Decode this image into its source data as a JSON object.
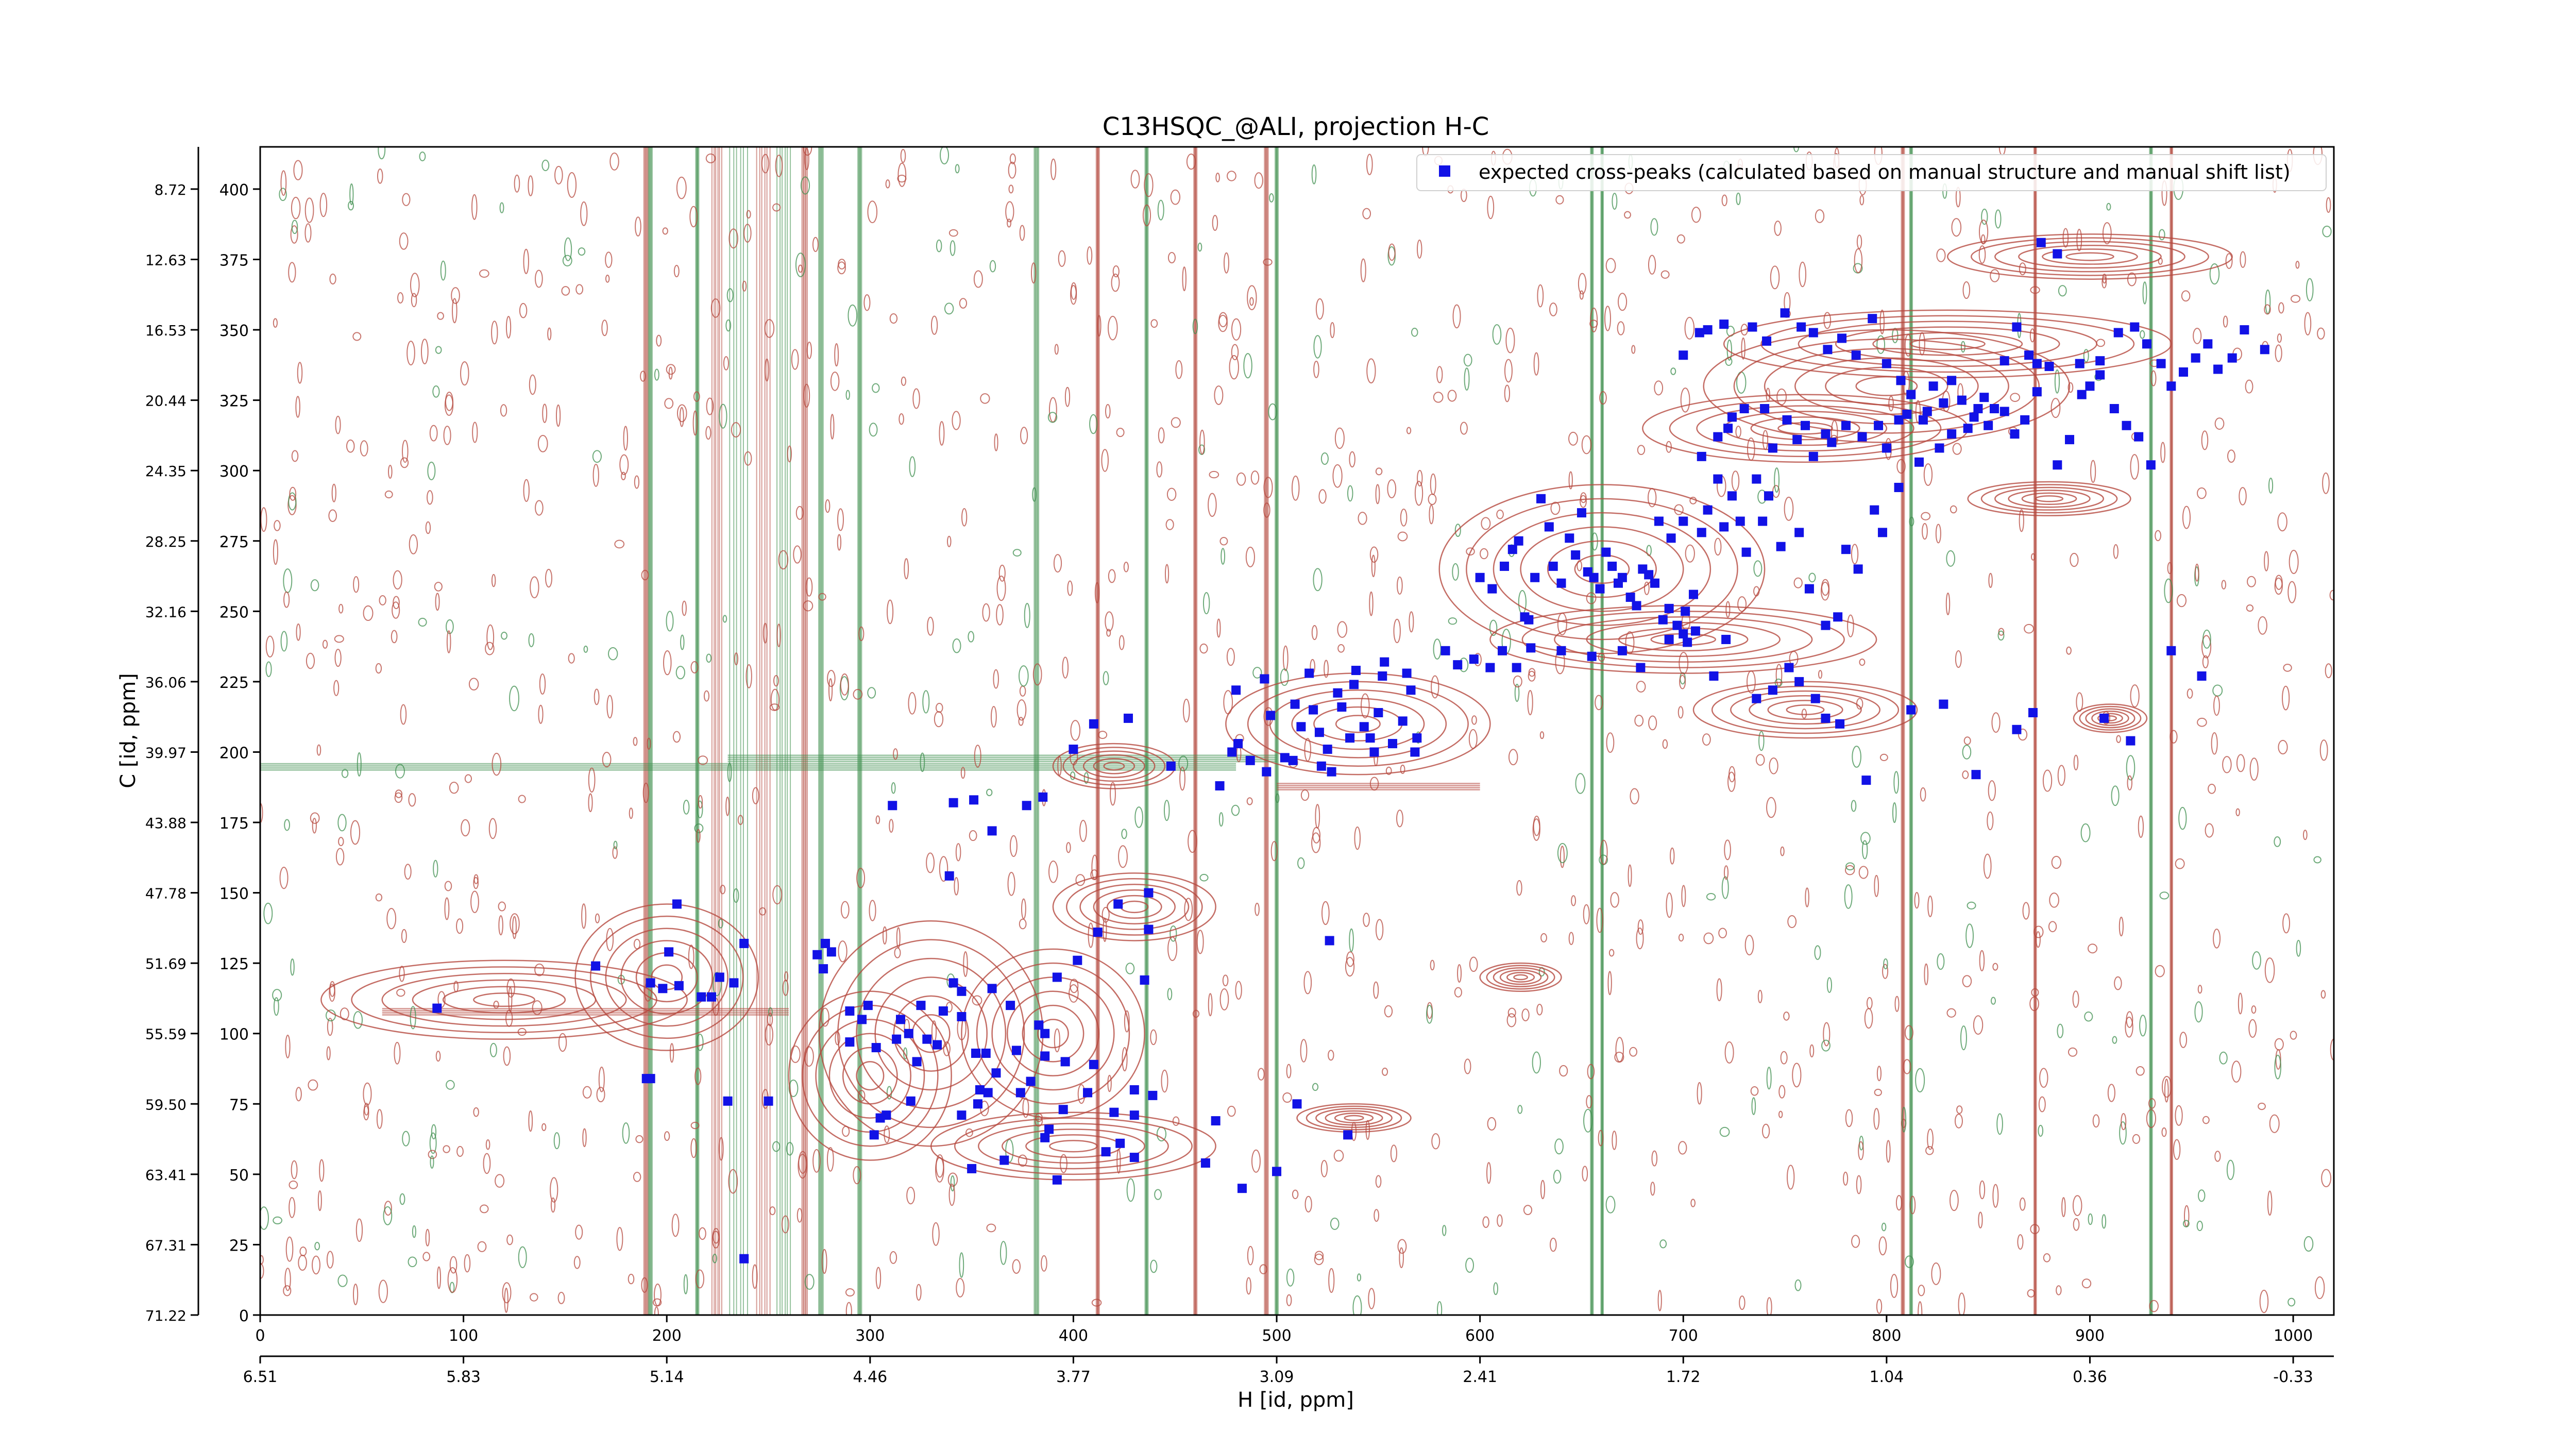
{
  "chart_data": {
    "type": "scatter",
    "title": "C13HSQC_@ALI, projection H-C",
    "xlabel": "H [id, ppm]",
    "ylabel": "C [id, ppm]",
    "x_index_ticks": [
      "0",
      "100",
      "200",
      "300",
      "400",
      "500",
      "600",
      "700",
      "800",
      "900",
      "1000"
    ],
    "x_ppm_ticks": [
      "6.51",
      "5.83",
      "5.14",
      "4.46",
      "3.77",
      "3.09",
      "2.41",
      "1.72",
      "1.04",
      "0.36",
      "-0.33"
    ],
    "y_index_ticks": [
      "0",
      "25",
      "50",
      "75",
      "100",
      "125",
      "150",
      "175",
      "200",
      "225",
      "250",
      "275",
      "300",
      "325",
      "350",
      "375",
      "400"
    ],
    "y_ppm_ticks": [
      "71.22",
      "67.31",
      "63.41",
      "59.50",
      "55.59",
      "51.69",
      "47.78",
      "43.88",
      "39.97",
      "36.06",
      "32.16",
      "28.25",
      "24.35",
      "20.44",
      "16.53",
      "12.63",
      "8.72"
    ],
    "xlim": [
      0,
      1020
    ],
    "ylim": [
      0,
      415
    ],
    "legend": {
      "position": "top-right",
      "label": "expected cross-peaks (calculated based on manual structure and manual shift list)"
    },
    "colors": {
      "positive_contour": "#b5483e",
      "negative_contour": "#3f8f4f",
      "marker": "#1212e6",
      "spine": "#000000"
    },
    "series": [
      {
        "name": "expected cross-peaks (calculated based on manual structure and manual shift list)",
        "points": [
          [
            87,
            109
          ],
          [
            165,
            124
          ],
          [
            192,
            118
          ],
          [
            198,
            116
          ],
          [
            201,
            129
          ],
          [
            205,
            146
          ],
          [
            206,
            117
          ],
          [
            217,
            113
          ],
          [
            222,
            113
          ],
          [
            190,
            84
          ],
          [
            192,
            84
          ],
          [
            230,
            76
          ],
          [
            250,
            76
          ],
          [
            238,
            20
          ],
          [
            238,
            132
          ],
          [
            233,
            118
          ],
          [
            226,
            120
          ],
          [
            274,
            128
          ],
          [
            278,
            132
          ],
          [
            281,
            129
          ],
          [
            277,
            123
          ],
          [
            290,
            108
          ],
          [
            290,
            97
          ],
          [
            296,
            105
          ],
          [
            299,
            110
          ],
          [
            302,
            64
          ],
          [
            305,
            70
          ],
          [
            303,
            95
          ],
          [
            308,
            71
          ],
          [
            313,
            98
          ],
          [
            315,
            105
          ],
          [
            319,
            100
          ],
          [
            320,
            76
          ],
          [
            323,
            90
          ],
          [
            325,
            110
          ],
          [
            328,
            98
          ],
          [
            333,
            96
          ],
          [
            336,
            108
          ],
          [
            341,
            118
          ],
          [
            345,
            115
          ],
          [
            345,
            106
          ],
          [
            352,
            93
          ],
          [
            354,
            80
          ],
          [
            357,
            93
          ],
          [
            360,
            116
          ],
          [
            362,
            86
          ],
          [
            369,
            110
          ],
          [
            372,
            94
          ],
          [
            379,
            83
          ],
          [
            383,
            103
          ],
          [
            386,
            100
          ],
          [
            386,
            63
          ],
          [
            392,
            120
          ],
          [
            395,
            73
          ],
          [
            396,
            90
          ],
          [
            402,
            126
          ],
          [
            407,
            79
          ],
          [
            410,
            89
          ],
          [
            412,
            136
          ],
          [
            416,
            58
          ],
          [
            422,
            146
          ],
          [
            423,
            61
          ],
          [
            430,
            56
          ],
          [
            430,
            80
          ],
          [
            435,
            119
          ],
          [
            437,
            137
          ],
          [
            439,
            78
          ],
          [
            437,
            150
          ],
          [
            345,
            71
          ],
          [
            350,
            52
          ],
          [
            353,
            75
          ],
          [
            358,
            79
          ],
          [
            366,
            55
          ],
          [
            374,
            79
          ],
          [
            386,
            92
          ],
          [
            388,
            66
          ],
          [
            392,
            48
          ],
          [
            420,
            72
          ],
          [
            430,
            71
          ],
          [
            470,
            69
          ],
          [
            483,
            45
          ],
          [
            465,
            54
          ],
          [
            500,
            51
          ],
          [
            510,
            75
          ],
          [
            526,
            133
          ],
          [
            535,
            64
          ],
          [
            311,
            181
          ],
          [
            339,
            156
          ],
          [
            341,
            182
          ],
          [
            351,
            183
          ],
          [
            360,
            172
          ],
          [
            377,
            181
          ],
          [
            385,
            184
          ],
          [
            400,
            201
          ],
          [
            410,
            210
          ],
          [
            427,
            212
          ],
          [
            448,
            195
          ],
          [
            472,
            188
          ],
          [
            497,
            213
          ],
          [
            480,
            222
          ],
          [
            494,
            226
          ],
          [
            478,
            200
          ],
          [
            481,
            203
          ],
          [
            487,
            197
          ],
          [
            495,
            193
          ],
          [
            504,
            198
          ],
          [
            508,
            197
          ],
          [
            509,
            217
          ],
          [
            512,
            209
          ],
          [
            516,
            228
          ],
          [
            518,
            215
          ],
          [
            521,
            207
          ],
          [
            525,
            201
          ],
          [
            530,
            221
          ],
          [
            532,
            216
          ],
          [
            538,
            224
          ],
          [
            539,
            229
          ],
          [
            550,
            214
          ],
          [
            552,
            227
          ],
          [
            562,
            211
          ],
          [
            564,
            228
          ],
          [
            566,
            222
          ],
          [
            568,
            200
          ],
          [
            569,
            205
          ],
          [
            557,
            203
          ],
          [
            543,
            209
          ],
          [
            546,
            205
          ],
          [
            548,
            200
          ],
          [
            522,
            195
          ],
          [
            527,
            193
          ],
          [
            536,
            205
          ],
          [
            553,
            232
          ],
          [
            583,
            236
          ],
          [
            589,
            231
          ],
          [
            597,
            233
          ],
          [
            605,
            230
          ],
          [
            611,
            236
          ],
          [
            618,
            230
          ],
          [
            624,
            247
          ],
          [
            625,
            237
          ],
          [
            640,
            236
          ],
          [
            655,
            234
          ],
          [
            670,
            236
          ],
          [
            679,
            230
          ],
          [
            693,
            240
          ],
          [
            700,
            242
          ],
          [
            702,
            239
          ],
          [
            706,
            243
          ],
          [
            715,
            227
          ],
          [
            721,
            240
          ],
          [
            736,
            219
          ],
          [
            744,
            222
          ],
          [
            752,
            230
          ],
          [
            757,
            225
          ],
          [
            765,
            219
          ],
          [
            770,
            212
          ],
          [
            777,
            210
          ],
          [
            790,
            190
          ],
          [
            812,
            215
          ],
          [
            828,
            217
          ],
          [
            844,
            192
          ],
          [
            864,
            208
          ],
          [
            872,
            214
          ],
          [
            907,
            212
          ],
          [
            920,
            204
          ],
          [
            940,
            236
          ],
          [
            955,
            227
          ],
          [
            600,
            262
          ],
          [
            606,
            258
          ],
          [
            612,
            266
          ],
          [
            616,
            272
          ],
          [
            619,
            275
          ],
          [
            622,
            248
          ],
          [
            627,
            262
          ],
          [
            630,
            290
          ],
          [
            634,
            280
          ],
          [
            636,
            266
          ],
          [
            640,
            260
          ],
          [
            644,
            276
          ],
          [
            647,
            270
          ],
          [
            650,
            285
          ],
          [
            653,
            264
          ],
          [
            656,
            262
          ],
          [
            659,
            258
          ],
          [
            662,
            271
          ],
          [
            665,
            266
          ],
          [
            668,
            260
          ],
          [
            670,
            262
          ],
          [
            674,
            255
          ],
          [
            677,
            252
          ],
          [
            680,
            265
          ],
          [
            683,
            263
          ],
          [
            686,
            260
          ],
          [
            690,
            247
          ],
          [
            693,
            251
          ],
          [
            697,
            245
          ],
          [
            701,
            250
          ],
          [
            705,
            256
          ],
          [
            709,
            278
          ],
          [
            712,
            286
          ],
          [
            717,
            297
          ],
          [
            720,
            280
          ],
          [
            724,
            291
          ],
          [
            728,
            282
          ],
          [
            731,
            271
          ],
          [
            736,
            297
          ],
          [
            739,
            282
          ],
          [
            742,
            291
          ],
          [
            748,
            273
          ],
          [
            757,
            278
          ],
          [
            762,
            258
          ],
          [
            770,
            245
          ],
          [
            776,
            248
          ],
          [
            780,
            272
          ],
          [
            786,
            265
          ],
          [
            794,
            286
          ],
          [
            798,
            278
          ],
          [
            806,
            294
          ],
          [
            688,
            282
          ],
          [
            694,
            276
          ],
          [
            700,
            282
          ],
          [
            709,
            305
          ],
          [
            717,
            312
          ],
          [
            722,
            315
          ],
          [
            724,
            319
          ],
          [
            730,
            322
          ],
          [
            740,
            322
          ],
          [
            744,
            308
          ],
          [
            751,
            318
          ],
          [
            756,
            311
          ],
          [
            760,
            316
          ],
          [
            764,
            305
          ],
          [
            770,
            313
          ],
          [
            773,
            310
          ],
          [
            780,
            316
          ],
          [
            788,
            312
          ],
          [
            796,
            316
          ],
          [
            800,
            308
          ],
          [
            806,
            318
          ],
          [
            810,
            320
          ],
          [
            816,
            303
          ],
          [
            820,
            321
          ],
          [
            826,
            308
          ],
          [
            832,
            313
          ],
          [
            840,
            315
          ],
          [
            845,
            322
          ],
          [
            850,
            316
          ],
          [
            858,
            321
          ],
          [
            863,
            313
          ],
          [
            868,
            318
          ],
          [
            874,
            328
          ],
          [
            884,
            302
          ],
          [
            890,
            311
          ],
          [
            896,
            327
          ],
          [
            900,
            330
          ],
          [
            905,
            339
          ],
          [
            912,
            322
          ],
          [
            918,
            316
          ],
          [
            924,
            312
          ],
          [
            930,
            302
          ],
          [
            700,
            341
          ],
          [
            708,
            349
          ],
          [
            712,
            350
          ],
          [
            720,
            352
          ],
          [
            734,
            351
          ],
          [
            741,
            346
          ],
          [
            750,
            356
          ],
          [
            758,
            351
          ],
          [
            764,
            349
          ],
          [
            771,
            343
          ],
          [
            778,
            347
          ],
          [
            785,
            341
          ],
          [
            793,
            354
          ],
          [
            800,
            338
          ],
          [
            807,
            332
          ],
          [
            812,
            327
          ],
          [
            818,
            318
          ],
          [
            823,
            330
          ],
          [
            828,
            324
          ],
          [
            832,
            332
          ],
          [
            837,
            325
          ],
          [
            843,
            319
          ],
          [
            848,
            326
          ],
          [
            853,
            322
          ],
          [
            858,
            339
          ],
          [
            864,
            351
          ],
          [
            870,
            341
          ],
          [
            874,
            338
          ],
          [
            876,
            381
          ],
          [
            880,
            337
          ],
          [
            884,
            377
          ],
          [
            895,
            338
          ],
          [
            905,
            334
          ],
          [
            914,
            349
          ],
          [
            922,
            351
          ],
          [
            928,
            345
          ],
          [
            935,
            338
          ],
          [
            940,
            330
          ],
          [
            946,
            335
          ],
          [
            952,
            340
          ],
          [
            958,
            345
          ],
          [
            963,
            336
          ],
          [
            970,
            340
          ],
          [
            976,
            350
          ],
          [
            986,
            343
          ]
        ]
      }
    ]
  }
}
